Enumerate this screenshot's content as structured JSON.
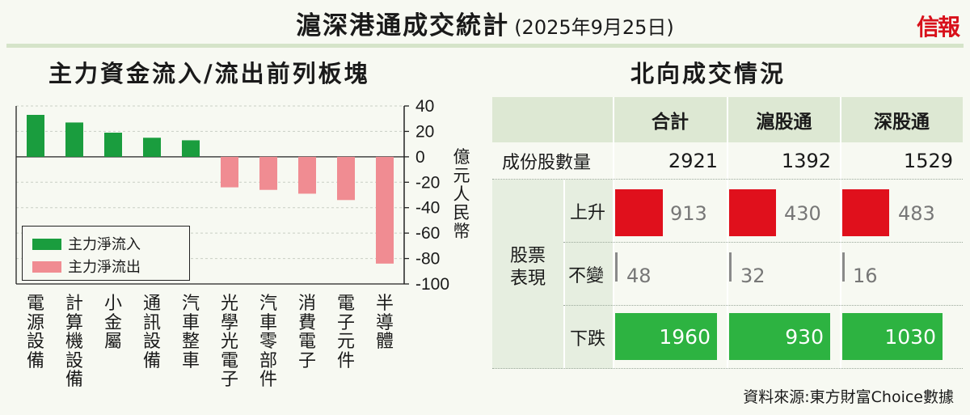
{
  "header": {
    "title": "滬深港通成交統計",
    "date": "(2025年9月25日)",
    "brand": "信報"
  },
  "left_title": "主力資金流入/流出前列板塊",
  "right_title": "北向成交情況",
  "chart_data": {
    "type": "bar",
    "categories": [
      "電源設備",
      "計算機設備",
      "小金屬",
      "通訊設備",
      "汽車整車",
      "光學光電子",
      "汽車零部件",
      "消費電子",
      "電子元件",
      "半導體"
    ],
    "values": [
      33,
      27,
      19,
      15,
      13,
      -24,
      -26,
      -29,
      -34,
      -84
    ],
    "ylim": [
      -100,
      40
    ],
    "yticks": [
      40,
      20,
      0,
      -20,
      -40,
      -60,
      -80,
      -100
    ],
    "ylabel": "億元人民幣",
    "legend": [
      {
        "label": "主力淨流入",
        "color": "#1a9d3e"
      },
      {
        "label": "主力淨流出",
        "color": "#f08c92"
      }
    ],
    "legend_position": "bottom-left",
    "grid": true
  },
  "table": {
    "columns": [
      "合計",
      "滬股通",
      "深股通"
    ],
    "row_constituents_label": "成份股數量",
    "constituents": [
      "2921",
      "1392",
      "1529"
    ],
    "group_label_1": "股票",
    "group_label_2": "表現",
    "rows": [
      {
        "label": "上升",
        "values": [
          "913",
          "430",
          "483"
        ],
        "fill": [
          0.47,
          0.47,
          0.47
        ],
        "color": "#e0101c"
      },
      {
        "label": "不變",
        "values": [
          "48",
          "32",
          "16"
        ]
      },
      {
        "label": "下跌",
        "values": [
          "1960",
          "930",
          "1030"
        ],
        "fill": [
          1.0,
          1.0,
          1.0
        ],
        "color": "#2db341"
      }
    ]
  },
  "source": "資料來源:東方財富Choice數據"
}
